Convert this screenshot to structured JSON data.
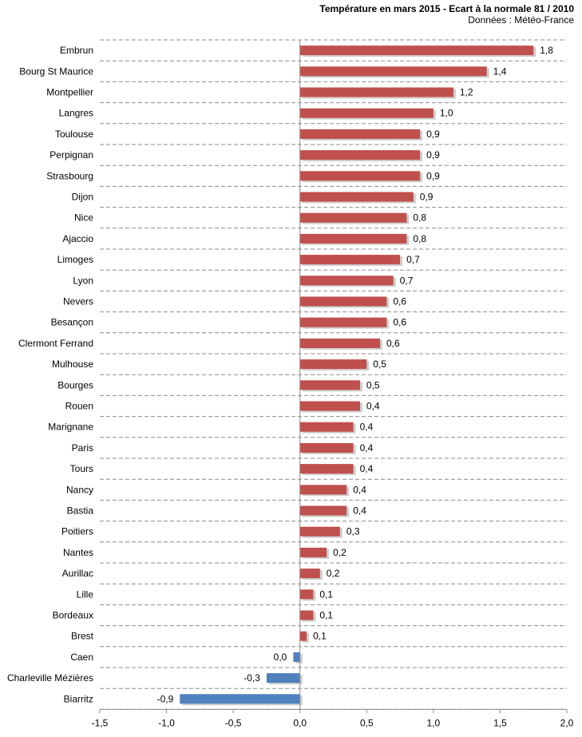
{
  "chart_data": {
    "type": "bar",
    "orientation": "horizontal",
    "title": "Température en mars 2015 - Ecart à la normale 81 / 2010",
    "subtitle": "Données : Météo-France",
    "xlabel": "",
    "ylabel": "",
    "xlim": [
      -1.5,
      2.0
    ],
    "xticks": [
      -1.5,
      -1.0,
      -0.5,
      0.0,
      0.5,
      1.0,
      1.5,
      2.0
    ],
    "xtick_labels": [
      "-1,5",
      "-1,0",
      "-0,5",
      "0,0",
      "0,5",
      "1,0",
      "1,5",
      "2,0"
    ],
    "grid": "horizontal dashed",
    "colors": {
      "positive": "#C0504D",
      "negative": "#4F81BD"
    },
    "categories": [
      "Embrun",
      "Bourg St Maurice",
      "Montpellier",
      "Langres",
      "Toulouse",
      "Perpignan",
      "Strasbourg",
      "Dijon",
      "Nice",
      "Ajaccio",
      "Limoges",
      "Lyon",
      "Nevers",
      "Besançon",
      "Clermont Ferrand",
      "Mulhouse",
      "Bourges",
      "Rouen",
      "Marignane",
      "Paris",
      "Tours",
      "Nancy",
      "Bastia",
      "Poitiers",
      "Nantes",
      "Aurillac",
      "Lille",
      "Bordeaux",
      "Brest",
      "Caen",
      "Charleville Mézières",
      "Biarritz"
    ],
    "values": [
      1.75,
      1.4,
      1.15,
      1.0,
      0.9,
      0.9,
      0.9,
      0.85,
      0.8,
      0.8,
      0.75,
      0.7,
      0.65,
      0.65,
      0.6,
      0.5,
      0.45,
      0.45,
      0.4,
      0.4,
      0.4,
      0.35,
      0.35,
      0.3,
      0.2,
      0.15,
      0.1,
      0.1,
      0.05,
      -0.05,
      -0.25,
      -0.9
    ],
    "value_labels": [
      "1,8",
      "1,4",
      "1,2",
      "1,0",
      "0,9",
      "0,9",
      "0,9",
      "0,9",
      "0,8",
      "0,8",
      "0,7",
      "0,7",
      "0,6",
      "0,6",
      "0,6",
      "0,5",
      "0,5",
      "0,4",
      "0,4",
      "0,4",
      "0,4",
      "0,4",
      "0,4",
      "0,3",
      "0,2",
      "0,2",
      "0,1",
      "0,1",
      "0,1",
      "0,0",
      "-0,3",
      "-0,9"
    ]
  }
}
